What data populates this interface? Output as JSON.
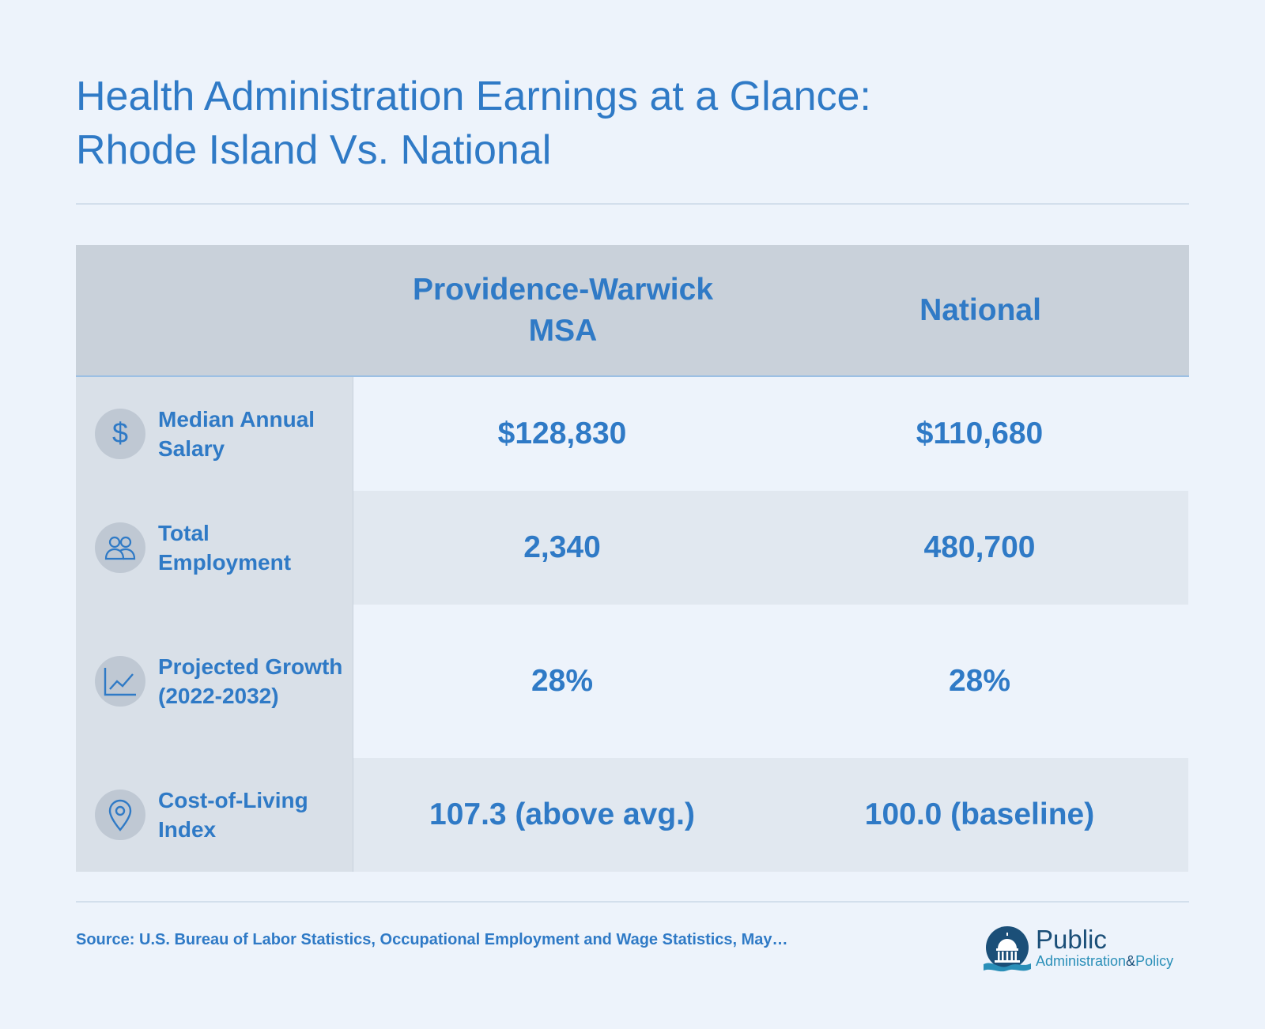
{
  "title": {
    "line1": "Health Administration Earnings at a Glance:",
    "line2": "Rhode Island Vs. National"
  },
  "table": {
    "headers": {
      "col1": "Providence-Warwick MSA",
      "col2": "National"
    },
    "rows": [
      {
        "label": "Median Annual Salary",
        "icon": "dollar-icon",
        "msa": "$128,830",
        "national": "$110,680"
      },
      {
        "label": "Total Employment",
        "icon": "people-icon",
        "msa": "2,340",
        "national": "480,700"
      },
      {
        "label": "Projected Growth (2022-2032)",
        "icon": "line-chart-icon",
        "msa": "28%",
        "national": "28%"
      },
      {
        "label": "Cost-of-Living Index",
        "icon": "location-pin-icon",
        "msa": "107.3 (above avg.)",
        "national": "100.0 (baseline)"
      }
    ]
  },
  "footer": {
    "source": "Source: U.S. Bureau of Labor Statistics, Occupational Employment and Wage Statistics, May…",
    "logo": {
      "line1": "Public",
      "line2a": "Administration",
      "amp": "&",
      "line2b": "Policy"
    }
  },
  "colors": {
    "accent": "#2f7ac6",
    "background": "#edf3fb",
    "header_bg": "#c9d1da",
    "label_bg": "#d9e0e8",
    "alt_row_bg": "#e1e8f0"
  }
}
